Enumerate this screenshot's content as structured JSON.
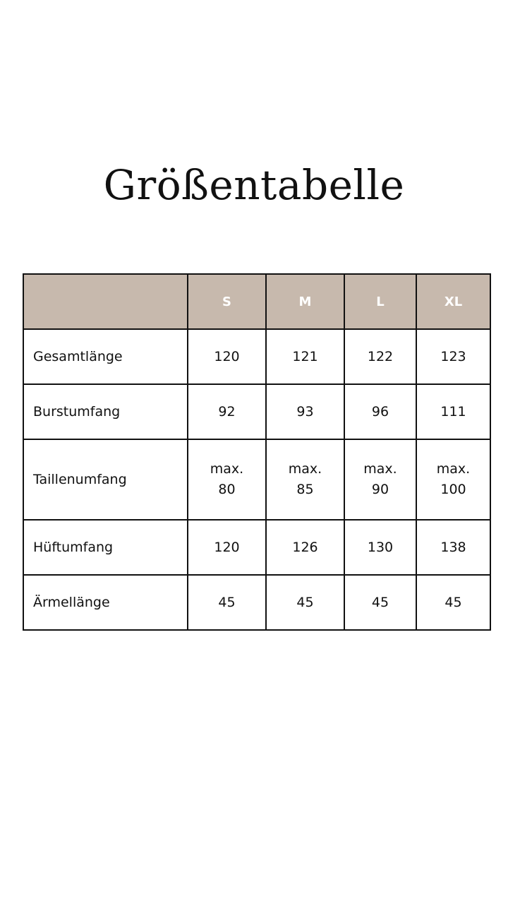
{
  "title": "Größentabelle",
  "colors": {
    "header_bg": "#c7b9ad",
    "header_text": "#ffffff",
    "border": "#111111"
  },
  "table": {
    "corner": "",
    "sizes": [
      "S",
      "M",
      "L",
      "XL"
    ],
    "rows": [
      {
        "label": "Gesamtlänge",
        "values": [
          "120",
          "121",
          "122",
          "123"
        ]
      },
      {
        "label": "Burstumfang",
        "values": [
          "92",
          "93",
          "96",
          "111"
        ]
      },
      {
        "label": "Taillenumfang",
        "values": [
          "max.\n80",
          "max.\n85",
          "max.\n90",
          "max.\n100"
        ]
      },
      {
        "label": "Hüftumfang",
        "values": [
          "120",
          "126",
          "130",
          "138"
        ]
      },
      {
        "label": "Ärmellänge",
        "values": [
          "45",
          "45",
          "45",
          "45"
        ]
      }
    ]
  }
}
